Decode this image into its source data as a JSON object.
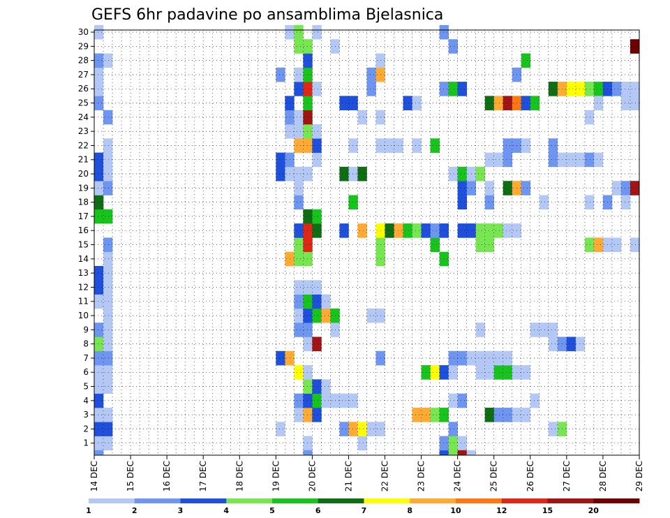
{
  "chart_data": {
    "type": "heatmap",
    "title": "GEFS 6hr padavine po ansamblima Bjelasnica",
    "x_tick_labels": [
      "14 DEC",
      "15 DEC",
      "16 DEC",
      "17 DEC",
      "18 DEC",
      "19 DEC",
      "20 DEC",
      "21 DEC",
      "22 DEC",
      "23 DEC",
      "24 DEC",
      "25 DEC",
      "26 DEC",
      "27 DEC",
      "28 DEC",
      "29 DEC"
    ],
    "y_tick_labels": [
      "1",
      "2",
      "3",
      "4",
      "5",
      "6",
      "7",
      "8",
      "9",
      "10",
      "11",
      "12",
      "13",
      "14",
      "15",
      "16",
      "17",
      "18",
      "19",
      "20",
      "21",
      "22",
      "23",
      "24",
      "25",
      "26",
      "27",
      "28",
      "29",
      "30"
    ],
    "xlim": [
      0,
      60
    ],
    "ylim": [
      0,
      30
    ],
    "grid": true,
    "colorbar": {
      "levels": [
        "1",
        "2",
        "3",
        "4",
        "5",
        "6",
        "7",
        "8",
        "10",
        "12",
        "15",
        "20"
      ],
      "colors": [
        "#b4c8f5",
        "#6e96f0",
        "#1e50dc",
        "#78e650",
        "#19c31e",
        "#0f6e14",
        "#ffff00",
        "#ffaa32",
        "#ff7814",
        "#dc2814",
        "#a01414",
        "#6e0000"
      ]
    },
    "palette": {
      "1": "#b4c8f5",
      "2": "#6e96f0",
      "3": "#1e50dc",
      "4": "#78e650",
      "5": "#19c31e",
      "6": "#0f6e14",
      "7": "#ffff00",
      "8": "#ffaa32",
      "9": "#ff7814",
      "10": "#dc2814",
      "11": "#a01414",
      "12": "#6e0000"
    },
    "cells": [
      [
        1,
        1,
        3
      ],
      [
        1,
        2,
        5
      ],
      [
        1,
        3,
        3
      ],
      [
        1,
        4,
        3
      ],
      [
        1,
        5,
        4
      ],
      [
        1,
        6,
        6
      ],
      [
        1,
        7,
        3
      ],
      [
        1,
        8,
        5
      ],
      [
        1,
        9,
        3
      ],
      [
        1,
        10,
        4
      ],
      [
        1,
        11,
        2
      ],
      [
        1,
        12,
        1
      ],
      [
        1,
        13,
        6
      ],
      [
        1,
        14,
        4
      ],
      [
        1,
        15,
        3
      ],
      [
        1,
        16,
        3
      ],
      [
        1,
        17,
        3
      ],
      [
        1,
        18,
        5
      ],
      [
        1,
        19,
        3
      ],
      [
        1,
        20,
        1
      ],
      [
        1,
        22,
        4
      ],
      [
        1,
        23,
        3
      ],
      [
        1,
        24,
        6
      ],
      [
        1,
        25,
        5
      ],
      [
        1,
        26,
        1
      ],
      [
        1,
        27,
        7
      ],
      [
        1,
        28,
        4
      ],
      [
        1,
        29,
        4
      ],
      [
        1,
        30,
        4
      ],
      [
        1,
        0,
        4
      ],
      [
        0,
        15,
        1
      ],
      [
        0,
        16,
        1
      ],
      [
        0,
        18,
        2
      ],
      [
        2,
        24,
        1
      ],
      [
        2,
        27,
        1
      ],
      [
        4,
        1,
        1
      ],
      [
        4,
        2,
        3
      ],
      [
        4,
        3,
        1
      ],
      [
        4,
        4,
        3
      ],
      [
        4,
        5,
        1
      ],
      [
        4,
        6,
        1
      ],
      [
        4,
        7,
        2
      ],
      [
        4,
        8,
        4
      ],
      [
        4,
        9,
        2
      ],
      [
        4,
        11,
        1
      ],
      [
        4,
        12,
        3
      ],
      [
        4,
        13,
        3
      ],
      [
        4,
        17,
        5
      ],
      [
        4,
        18,
        6
      ],
      [
        4,
        19,
        1
      ],
      [
        4,
        20,
        3
      ],
      [
        4,
        21,
        3
      ],
      [
        4,
        25,
        2
      ],
      [
        4,
        26,
        1
      ],
      [
        4,
        27,
        1
      ],
      [
        4,
        28,
        2
      ],
      [
        4,
        30,
        1
      ],
      [
        4,
        0,
        2
      ],
      [
        5,
        1,
        1
      ],
      [
        5,
        2,
        3
      ],
      [
        5,
        3,
        1
      ],
      [
        5,
        5,
        1
      ],
      [
        5,
        6,
        1
      ],
      [
        5,
        7,
        2
      ],
      [
        5,
        8,
        1
      ],
      [
        5,
        9,
        1
      ],
      [
        5,
        10,
        1
      ],
      [
        5,
        11,
        1
      ],
      [
        5,
        12,
        1
      ],
      [
        5,
        13,
        1
      ],
      [
        5,
        14,
        1
      ],
      [
        5,
        15,
        2
      ],
      [
        5,
        17,
        5
      ],
      [
        5,
        19,
        2
      ],
      [
        5,
        20,
        1
      ],
      [
        5,
        21,
        1
      ],
      [
        5,
        22,
        1
      ],
      [
        5,
        24,
        2
      ],
      [
        5,
        28,
        1
      ],
      [
        24,
        2,
        1
      ],
      [
        24,
        7,
        3
      ],
      [
        24,
        20,
        3
      ],
      [
        24,
        21,
        3
      ],
      [
        24,
        27,
        2
      ],
      [
        24,
        25,
        0
      ],
      [
        25,
        7,
        8
      ],
      [
        25,
        14,
        8
      ],
      [
        25,
        20,
        1
      ],
      [
        25,
        21,
        2
      ],
      [
        25,
        23,
        1
      ],
      [
        25,
        24,
        2
      ],
      [
        25,
        25,
        3
      ],
      [
        25,
        30,
        1
      ],
      [
        26,
        3,
        1
      ],
      [
        26,
        4,
        2
      ],
      [
        26,
        6,
        7
      ],
      [
        26,
        9,
        2
      ],
      [
        26,
        10,
        1
      ],
      [
        26,
        11,
        2
      ],
      [
        26,
        12,
        1
      ],
      [
        26,
        14,
        4
      ],
      [
        26,
        15,
        4
      ],
      [
        26,
        16,
        3
      ],
      [
        26,
        18,
        2
      ],
      [
        26,
        19,
        1
      ],
      [
        26,
        20,
        1
      ],
      [
        26,
        22,
        8
      ],
      [
        26,
        23,
        1
      ],
      [
        26,
        24,
        1
      ],
      [
        26,
        26,
        3
      ],
      [
        26,
        27,
        1
      ],
      [
        26,
        29,
        4
      ],
      [
        26,
        30,
        4
      ],
      [
        27,
        1,
        1
      ],
      [
        27,
        3,
        8
      ],
      [
        27,
        4,
        3
      ],
      [
        27,
        5,
        4
      ],
      [
        27,
        6,
        1
      ],
      [
        27,
        8,
        1
      ],
      [
        27,
        9,
        2
      ],
      [
        27,
        10,
        3
      ],
      [
        27,
        11,
        5
      ],
      [
        27,
        12,
        1
      ],
      [
        27,
        14,
        4
      ],
      [
        27,
        15,
        10
      ],
      [
        27,
        16,
        10
      ],
      [
        27,
        17,
        6
      ],
      [
        27,
        20,
        1
      ],
      [
        27,
        22,
        8
      ],
      [
        27,
        23,
        4
      ],
      [
        27,
        24,
        11
      ],
      [
        27,
        25,
        5
      ],
      [
        27,
        26,
        10
      ],
      [
        27,
        27,
        5
      ],
      [
        27,
        28,
        3
      ],
      [
        27,
        29,
        4
      ],
      [
        27,
        0,
        2
      ],
      [
        28,
        3,
        3
      ],
      [
        28,
        4,
        5
      ],
      [
        28,
        5,
        3
      ],
      [
        28,
        8,
        11
      ],
      [
        28,
        10,
        5
      ],
      [
        28,
        11,
        3
      ],
      [
        28,
        12,
        1
      ],
      [
        28,
        16,
        6
      ],
      [
        28,
        17,
        5
      ],
      [
        28,
        21,
        1
      ],
      [
        28,
        22,
        3
      ],
      [
        28,
        23,
        1
      ],
      [
        28,
        26,
        1
      ],
      [
        28,
        30,
        1
      ],
      [
        29,
        4,
        1
      ],
      [
        29,
        5,
        1
      ],
      [
        29,
        10,
        8
      ],
      [
        29,
        11,
        1
      ],
      [
        30,
        4,
        1
      ],
      [
        30,
        9,
        1
      ],
      [
        30,
        10,
        5
      ],
      [
        30,
        29,
        1
      ],
      [
        31,
        2,
        2
      ],
      [
        31,
        4,
        1
      ],
      [
        31,
        16,
        3
      ],
      [
        31,
        20,
        6
      ],
      [
        31,
        25,
        3
      ],
      [
        32,
        2,
        8
      ],
      [
        32,
        4,
        1
      ],
      [
        32,
        18,
        5
      ],
      [
        32,
        20,
        1
      ],
      [
        32,
        22,
        1
      ],
      [
        32,
        25,
        3
      ],
      [
        33,
        1,
        1
      ],
      [
        33,
        2,
        7
      ],
      [
        33,
        16,
        8
      ],
      [
        33,
        20,
        6
      ],
      [
        33,
        24,
        1
      ],
      [
        34,
        2,
        1
      ],
      [
        34,
        10,
        1
      ],
      [
        34,
        26,
        2
      ],
      [
        34,
        27,
        2
      ],
      [
        35,
        2,
        1
      ],
      [
        35,
        10,
        1
      ],
      [
        35,
        14,
        4
      ],
      [
        35,
        15,
        4
      ],
      [
        35,
        16,
        7
      ],
      [
        35,
        22,
        1
      ],
      [
        35,
        24,
        1
      ],
      [
        35,
        27,
        8
      ],
      [
        35,
        28,
        1
      ],
      [
        35,
        7,
        2
      ],
      [
        36,
        22,
        1
      ],
      [
        36,
        16,
        6
      ],
      [
        37,
        16,
        8
      ],
      [
        37,
        22,
        1
      ],
      [
        38,
        16,
        5
      ],
      [
        38,
        25,
        3
      ],
      [
        39,
        16,
        4
      ],
      [
        39,
        3,
        8
      ],
      [
        39,
        22,
        1
      ],
      [
        39,
        25,
        1
      ],
      [
        40,
        3,
        8
      ],
      [
        40,
        6,
        5
      ],
      [
        40,
        16,
        3
      ],
      [
        41,
        3,
        4
      ],
      [
        41,
        6,
        7
      ],
      [
        41,
        15,
        5
      ],
      [
        41,
        16,
        2
      ],
      [
        41,
        22,
        5
      ],
      [
        42,
        3,
        5
      ],
      [
        42,
        6,
        3
      ],
      [
        42,
        16,
        3
      ],
      [
        42,
        0,
        3
      ],
      [
        42,
        1,
        2
      ],
      [
        42,
        14,
        5
      ],
      [
        42,
        26,
        2
      ],
      [
        42,
        30,
        2
      ],
      [
        43,
        1,
        4
      ],
      [
        43,
        2,
        2
      ],
      [
        43,
        6,
        1
      ],
      [
        43,
        7,
        2
      ],
      [
        43,
        0,
        4
      ],
      [
        43,
        4,
        1
      ],
      [
        43,
        20,
        1
      ],
      [
        43,
        26,
        5
      ],
      [
        43,
        29,
        2
      ],
      [
        44,
        1,
        1
      ],
      [
        44,
        7,
        2
      ],
      [
        44,
        4,
        2
      ],
      [
        44,
        16,
        3
      ],
      [
        44,
        18,
        3
      ],
      [
        44,
        19,
        3
      ],
      [
        44,
        20,
        5
      ],
      [
        44,
        0,
        11
      ],
      [
        44,
        26,
        3
      ],
      [
        45,
        7,
        1
      ],
      [
        45,
        16,
        3
      ],
      [
        45,
        19,
        2
      ],
      [
        45,
        0,
        1
      ],
      [
        45,
        20,
        1
      ],
      [
        46,
        6,
        1
      ],
      [
        46,
        7,
        1
      ],
      [
        46,
        9,
        1
      ],
      [
        46,
        15,
        4
      ],
      [
        46,
        16,
        4
      ],
      [
        46,
        20,
        4
      ],
      [
        47,
        6,
        1
      ],
      [
        47,
        7,
        1
      ],
      [
        47,
        15,
        4
      ],
      [
        47,
        16,
        4
      ],
      [
        47,
        18,
        2
      ],
      [
        47,
        19,
        1
      ],
      [
        47,
        21,
        1
      ],
      [
        47,
        25,
        6
      ],
      [
        47,
        3,
        6
      ],
      [
        48,
        6,
        5
      ],
      [
        48,
        3,
        2
      ],
      [
        48,
        7,
        1
      ],
      [
        48,
        16,
        4
      ],
      [
        48,
        21,
        1
      ],
      [
        48,
        25,
        8
      ],
      [
        49,
        6,
        5
      ],
      [
        49,
        3,
        2
      ],
      [
        49,
        7,
        1
      ],
      [
        49,
        16,
        1
      ],
      [
        49,
        21,
        2
      ],
      [
        49,
        22,
        2
      ],
      [
        49,
        25,
        11
      ],
      [
        49,
        19,
        6
      ],
      [
        50,
        3,
        1
      ],
      [
        50,
        6,
        1
      ],
      [
        50,
        16,
        1
      ],
      [
        50,
        25,
        9
      ],
      [
        50,
        22,
        2
      ],
      [
        50,
        19,
        8
      ],
      [
        50,
        27,
        2
      ],
      [
        51,
        3,
        1
      ],
      [
        51,
        6,
        1
      ],
      [
        51,
        22,
        1
      ],
      [
        51,
        25,
        3
      ],
      [
        51,
        19,
        2
      ],
      [
        51,
        28,
        5
      ],
      [
        52,
        4,
        1
      ],
      [
        52,
        9,
        1
      ],
      [
        52,
        25,
        5
      ],
      [
        53,
        9,
        1
      ],
      [
        53,
        18,
        1
      ],
      [
        54,
        8,
        1
      ],
      [
        54,
        9,
        1
      ],
      [
        54,
        21,
        2
      ],
      [
        54,
        22,
        2
      ],
      [
        54,
        26,
        6
      ],
      [
        54,
        2,
        1
      ],
      [
        55,
        2,
        4
      ],
      [
        55,
        8,
        2
      ],
      [
        55,
        21,
        1
      ],
      [
        55,
        26,
        8
      ],
      [
        56,
        8,
        3
      ],
      [
        56,
        21,
        1
      ],
      [
        56,
        26,
        7
      ],
      [
        57,
        8,
        1
      ],
      [
        57,
        21,
        1
      ],
      [
        57,
        26,
        7
      ],
      [
        58,
        21,
        2
      ],
      [
        58,
        26,
        4
      ],
      [
        58,
        15,
        4
      ],
      [
        58,
        18,
        1
      ],
      [
        58,
        24,
        1
      ],
      [
        59,
        15,
        8
      ],
      [
        59,
        21,
        1
      ],
      [
        59,
        26,
        5
      ],
      [
        59,
        25,
        1
      ],
      [
        60,
        26,
        3
      ],
      [
        60,
        15,
        1
      ],
      [
        60,
        18,
        2
      ],
      [
        61,
        19,
        1
      ],
      [
        61,
        26,
        2
      ],
      [
        61,
        15,
        1
      ],
      [
        62,
        19,
        2
      ],
      [
        62,
        18,
        1
      ],
      [
        62,
        26,
        1
      ],
      [
        62,
        25,
        1
      ],
      [
        63,
        19,
        11
      ],
      [
        63,
        29,
        12
      ],
      [
        63,
        26,
        1
      ],
      [
        63,
        25,
        1
      ],
      [
        63,
        15,
        1
      ],
      [
        64,
        29,
        12
      ],
      [
        64,
        27,
        4
      ],
      [
        64,
        19,
        3
      ],
      [
        64,
        16,
        3
      ],
      [
        64,
        25,
        1
      ],
      [
        64,
        15,
        1
      ],
      [
        64,
        4,
        6
      ],
      [
        64,
        9,
        1
      ]
    ]
  }
}
